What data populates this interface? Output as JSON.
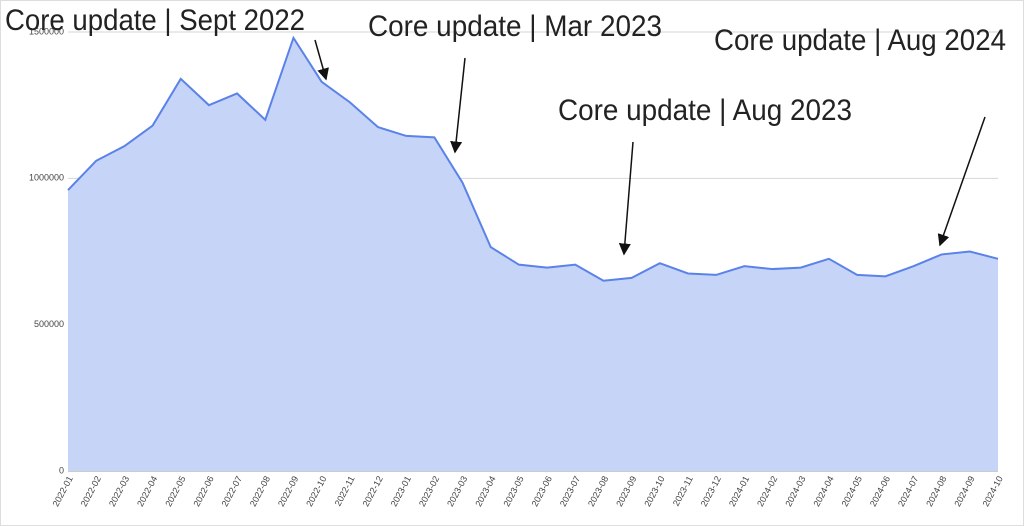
{
  "chart_data": {
    "type": "area",
    "categories": [
      "2022-01",
      "2022-02",
      "2022-03",
      "2022-04",
      "2022-05",
      "2022-06",
      "2022-07",
      "2022-08",
      "2022-09",
      "2022-10",
      "2022-11",
      "2022-12",
      "2023-01",
      "2023-02",
      "2023-03",
      "2023-04",
      "2023-05",
      "2023-06",
      "2023-07",
      "2023-08",
      "2023-09",
      "2023-10",
      "2023-11",
      "2023-12",
      "2024-01",
      "2024-02",
      "2024-03",
      "2024-04",
      "2024-05",
      "2024-06",
      "2024-07",
      "2024-08",
      "2024-09",
      "2024-10"
    ],
    "values": [
      960000,
      1060000,
      1110000,
      1180000,
      1340000,
      1250000,
      1290000,
      1200000,
      1480000,
      1330000,
      1260000,
      1175000,
      1145000,
      1140000,
      985000,
      765000,
      705000,
      695000,
      705000,
      650000,
      660000,
      710000,
      675000,
      670000,
      700000,
      690000,
      695000,
      725000,
      670000,
      665000,
      700000,
      740000,
      750000,
      725000
    ],
    "color": "#5a82e8",
    "area_color": "#c6d5f7",
    "ylim": [
      0,
      1500000
    ],
    "yticks": [
      0,
      500000,
      1000000,
      1500000
    ],
    "grid": true,
    "annotations": [
      "Core update | Sept 2022",
      "Core update | Mar 2023",
      "Core update | Aug 2023",
      "Core update | Aug 2024"
    ]
  }
}
